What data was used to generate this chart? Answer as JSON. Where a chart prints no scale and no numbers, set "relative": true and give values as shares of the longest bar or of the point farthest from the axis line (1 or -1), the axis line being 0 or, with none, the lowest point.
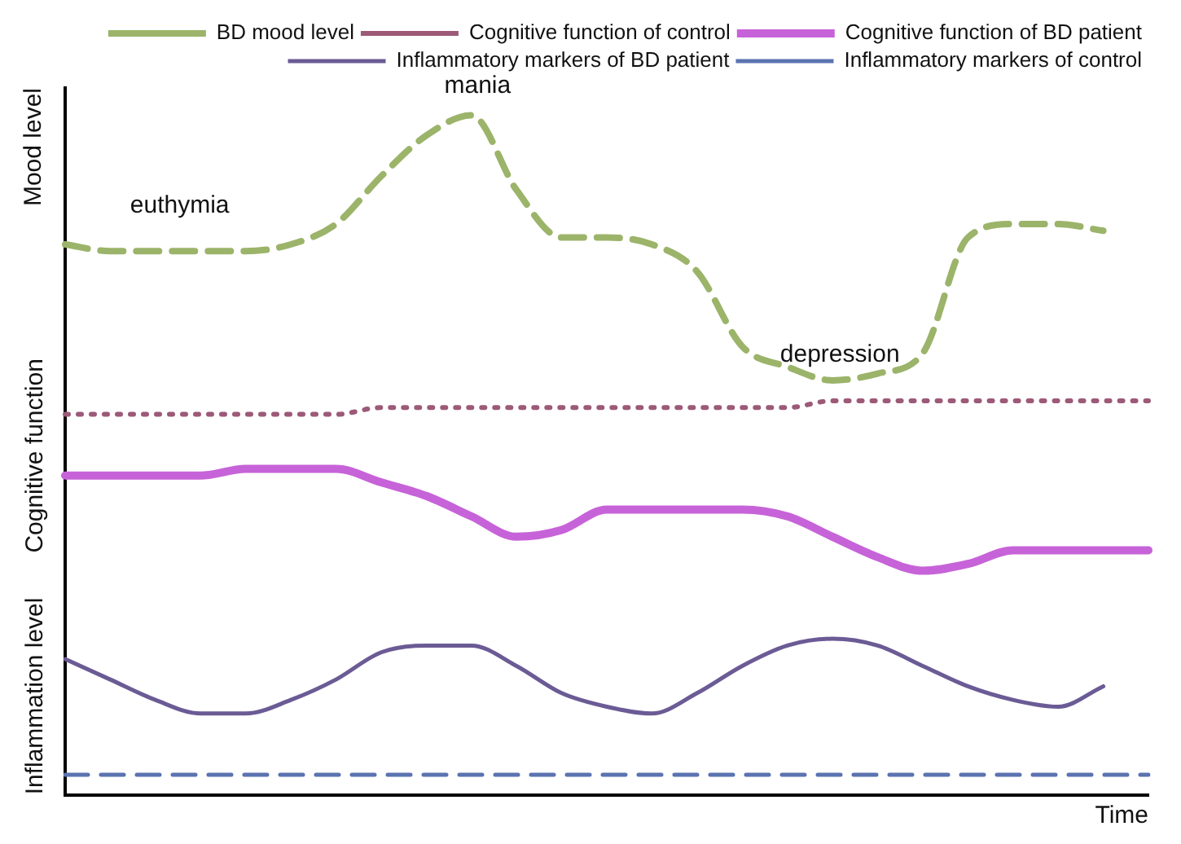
{
  "chart_data": {
    "type": "line",
    "relative": true,
    "xlabel": "Time",
    "ylabel": "Mood level",
    "grid": false,
    "legend": "top right",
    "marker": "none",
    "categories": [
      null,
      null,
      null,
      null,
      null,
      null,
      null,
      null,
      null,
      null,
      null,
      null,
      null,
      null,
      null,
      null,
      null,
      null,
      null,
      null,
      null,
      null,
      null,
      null,
      null
    ],
    "series": [
      {
        "name": "BD mood level",
        "color": "#9bb46a",
        "line_style": "dashed",
        "values": [
          0.81,
          0.8,
          0.8,
          0.8,
          0.8,
          0.81,
          0.84,
          0.91,
          0.97,
          1,
          0.89,
          0.82,
          0.82,
          0.81,
          0.77,
          0.66,
          0.63,
          0.61,
          0.62,
          0.65,
          0.82,
          0.84,
          0.84,
          0.83,
          null
        ]
      },
      {
        "name": "Cognitive function of control",
        "color": "#9c5a78",
        "line_style": "dotted",
        "values": [
          0.56,
          0.56,
          0.56,
          0.56,
          0.56,
          0.56,
          0.56,
          0.57,
          0.57,
          0.57,
          0.57,
          0.57,
          0.57,
          0.57,
          0.57,
          0.57,
          0.57,
          0.58,
          0.58,
          0.58,
          0.58,
          0.58,
          0.58,
          0.58,
          0.58
        ]
      },
      {
        "name": "Cognitive function of BD patient",
        "color": "#c763d8",
        "line_style": "solid",
        "values": [
          0.47,
          0.47,
          0.47,
          0.47,
          0.48,
          0.48,
          0.48,
          0.46,
          0.44,
          0.41,
          0.38,
          0.39,
          0.42,
          0.42,
          0.42,
          0.42,
          0.41,
          0.38,
          0.35,
          0.33,
          0.34,
          0.36,
          0.36,
          0.36,
          0.36
        ]
      },
      {
        "name": "Inflammatory markers of BD patient",
        "color": "#6b5b95",
        "line_style": "solid",
        "values": [
          0.2,
          0.17,
          0.14,
          0.12,
          0.12,
          0.14,
          0.17,
          0.21,
          0.22,
          0.22,
          0.19,
          0.15,
          0.13,
          0.12,
          0.15,
          0.19,
          0.22,
          0.23,
          0.22,
          0.19,
          0.16,
          0.14,
          0.13,
          0.16,
          null
        ]
      },
      {
        "name": "Inflammatory markers of control",
        "color": "#5b73b0",
        "line_style": "dashed",
        "values": [
          0.03,
          0.03,
          0.03,
          0.03,
          0.03,
          0.03,
          0.03,
          0.03,
          0.03,
          0.03,
          0.03,
          0.03,
          0.03,
          0.03,
          0.03,
          0.03,
          0.03,
          0.03,
          0.03,
          0.03,
          0.03,
          0.03,
          0.03,
          0.03,
          0.03
        ]
      }
    ],
    "annotations": [
      "euthymia",
      "mania",
      "depression",
      "Cognitive function",
      "Inflammation level"
    ]
  }
}
